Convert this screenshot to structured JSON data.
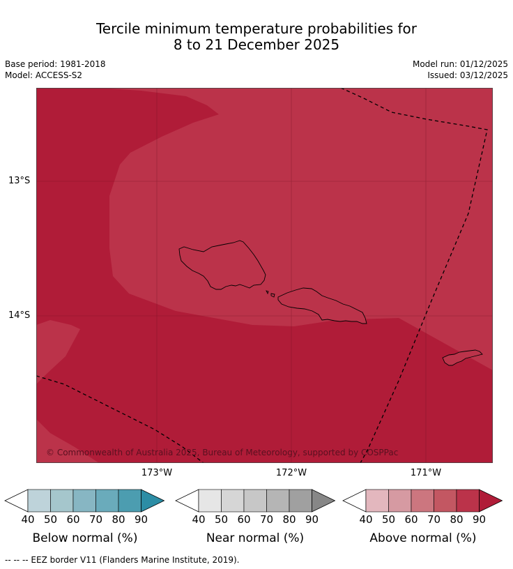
{
  "title": {
    "line1": "Tercile minimum temperature probabilities for",
    "line2": "8 to 21 December 2025"
  },
  "meta": {
    "base_period": "Base period: 1981-2018",
    "model": "Model: ACCESS-S2",
    "model_run": "Model run: 01/12/2025",
    "issued": "Issued: 03/12/2025"
  },
  "map": {
    "lat_labels": [
      "13°S",
      "14°S"
    ],
    "lon_labels": [
      "173°W",
      "172°W",
      "171°W"
    ],
    "copyright": "© Commonwealth of Australia 2025, Bureau of Meteorology, supported by COSPPac",
    "colors": {
      "above_80": "#bb334a",
      "above_90": "#b01c38",
      "land_outline": "#000000",
      "eez_border": "#000000"
    }
  },
  "colorbars": [
    {
      "name": "Below normal (%)",
      "ticks": [
        "40",
        "50",
        "60",
        "70",
        "80",
        "90"
      ],
      "colors": [
        "#ffffff",
        "#bed3da",
        "#a5c6cc",
        "#87b6c3",
        "#6aabbb",
        "#4c9db0",
        "#2c8da5"
      ]
    },
    {
      "name": "Near normal (%)",
      "ticks": [
        "40",
        "50",
        "60",
        "70",
        "80",
        "90"
      ],
      "colors": [
        "#ffffff",
        "#e6e6e6",
        "#d6d6d6",
        "#c7c7c7",
        "#b5b5b5",
        "#a0a0a0",
        "#878787"
      ]
    },
    {
      "name": "Above normal (%)",
      "ticks": [
        "40",
        "50",
        "60",
        "70",
        "80",
        "90"
      ],
      "colors": [
        "#ffffff",
        "#e3b7be",
        "#d69aa2",
        "#cc767f",
        "#c35762",
        "#bb334a",
        "#b01c38"
      ]
    }
  ],
  "footnote": "--  --  -- EEZ border V11 (Flanders Marine Institute, 2019)."
}
